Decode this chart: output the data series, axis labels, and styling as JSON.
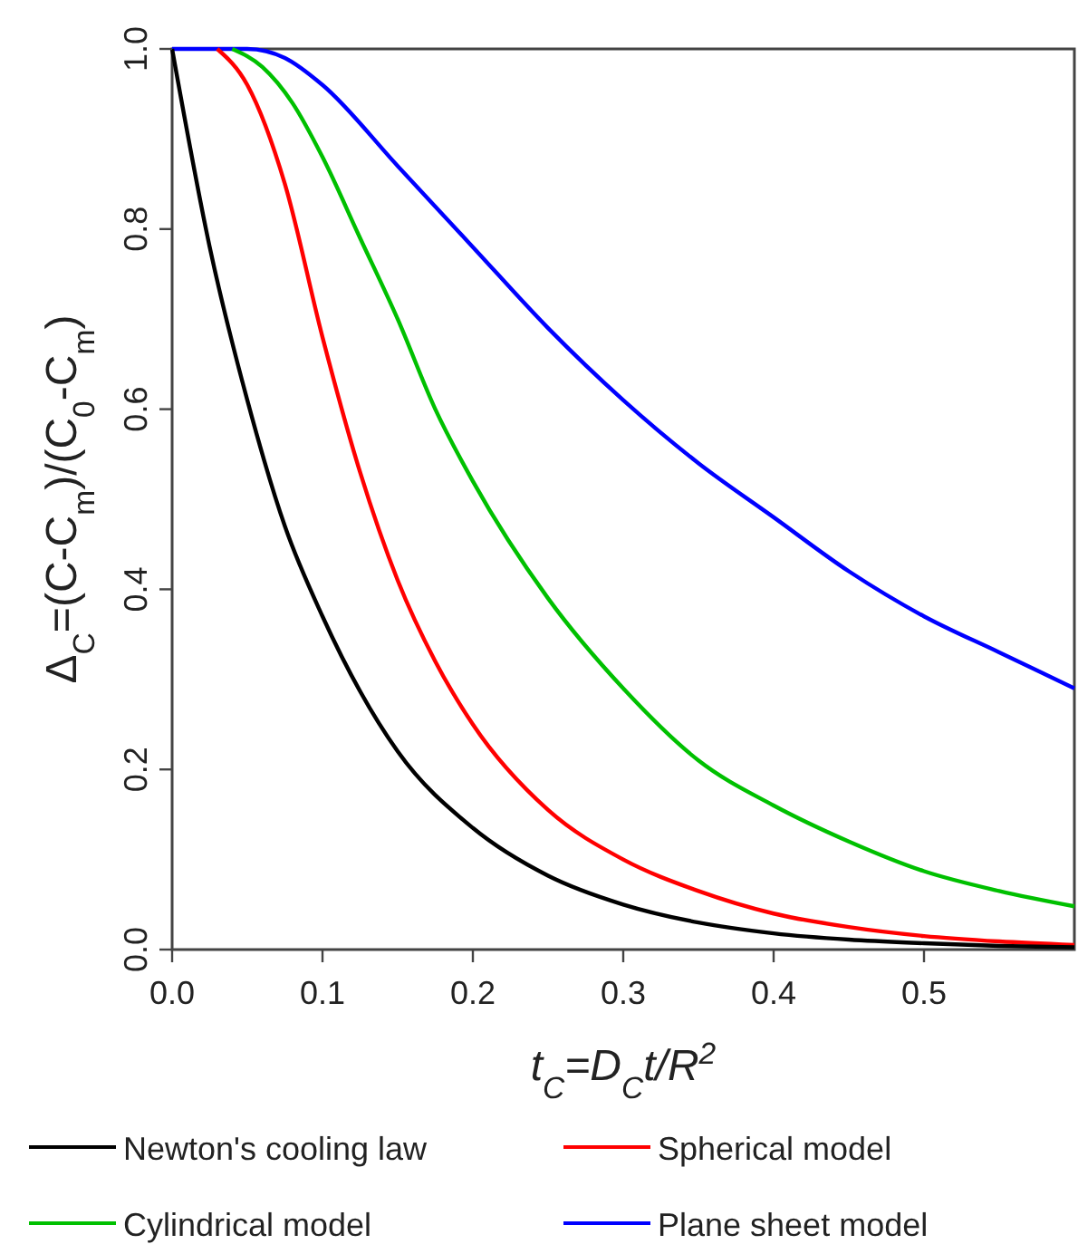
{
  "chart_data": {
    "type": "line",
    "xlabel": "t$_{C}$=D$_{C}$t/R$^{2}$",
    "ylabel": "Δ$_{C}$=(C-C$_{m}$)/(C$_{0}$-C$_{m}$)",
    "xlim": [
      0,
      0.6
    ],
    "ylim": [
      0,
      1
    ],
    "xticks": [
      {
        "value": 0,
        "label": "0.0"
      },
      0.1,
      0.2,
      0.3,
      0.4,
      0.5
    ],
    "yticks": [
      {
        "value": 0,
        "label": "0.0"
      },
      0.2,
      0.4,
      0.6,
      0.8,
      {
        "value": 1,
        "label": "1.0"
      }
    ],
    "grid": false,
    "legend": "bottom",
    "marker": "none",
    "line_style": "solid",
    "series": [
      {
        "name": "Newton's cooling law",
        "color": "#000000",
        "x": [
          0,
          0.025,
          0.05,
          0.075,
          0.1,
          0.15,
          0.2,
          0.25,
          0.3,
          0.35,
          0.4,
          0.45,
          0.5,
          0.55,
          0.6
        ],
        "values": [
          1,
          0.78,
          0.61,
          0.47,
          0.37,
          0.22,
          0.135,
          0.082,
          0.05,
          0.03,
          0.018,
          0.011,
          0.007,
          0.004,
          0.0025
        ]
      },
      {
        "name": "Spherical model",
        "color": "#ff0000",
        "x": [
          0.03,
          0.05,
          0.075,
          0.1,
          0.125,
          0.15,
          0.175,
          0.2,
          0.25,
          0.3,
          0.35,
          0.4,
          0.45,
          0.5,
          0.55,
          0.6
        ],
        "values": [
          1,
          0.96,
          0.85,
          0.68,
          0.53,
          0.41,
          0.32,
          0.25,
          0.155,
          0.1,
          0.065,
          0.04,
          0.025,
          0.015,
          0.009,
          0.005
        ]
      },
      {
        "name": "Cylindrical model",
        "color": "#00c000",
        "x": [
          0.04,
          0.06,
          0.08,
          0.1,
          0.125,
          0.15,
          0.175,
          0.2,
          0.25,
          0.3,
          0.35,
          0.4,
          0.45,
          0.5,
          0.55,
          0.6
        ],
        "values": [
          1,
          0.98,
          0.94,
          0.88,
          0.79,
          0.7,
          0.6,
          0.52,
          0.39,
          0.29,
          0.21,
          0.16,
          0.12,
          0.087,
          0.065,
          0.048
        ]
      },
      {
        "name": "Plane sheet model",
        "color": "#0000ff",
        "x": [
          0,
          0.05,
          0.075,
          0.1,
          0.15,
          0.2,
          0.25,
          0.3,
          0.35,
          0.4,
          0.45,
          0.5,
          0.55,
          0.6
        ],
        "values": [
          1,
          1,
          0.99,
          0.96,
          0.87,
          0.78,
          0.69,
          0.61,
          0.54,
          0.48,
          0.42,
          0.37,
          0.33,
          0.29
        ]
      }
    ]
  }
}
